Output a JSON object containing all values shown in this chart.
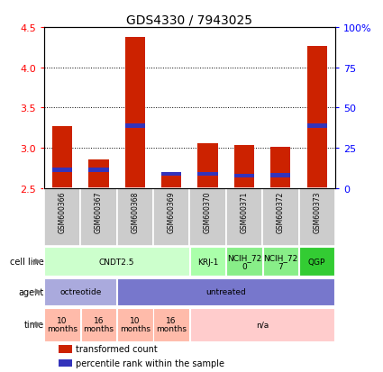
{
  "title": "GDS4330 / 7943025",
  "samples": [
    "GSM600366",
    "GSM600367",
    "GSM600368",
    "GSM600369",
    "GSM600370",
    "GSM600371",
    "GSM600372",
    "GSM600373"
  ],
  "bar_heights": [
    3.27,
    2.85,
    4.38,
    2.66,
    3.06,
    3.04,
    3.01,
    4.27
  ],
  "bar_base": 2.5,
  "blue_values": [
    2.7,
    2.7,
    3.25,
    2.655,
    2.655,
    2.635,
    2.635,
    3.25
  ],
  "blue_heights": [
    0.055,
    0.055,
    0.055,
    0.04,
    0.04,
    0.04,
    0.055,
    0.055
  ],
  "ylim": [
    2.5,
    4.5
  ],
  "y_ticks_left": [
    2.5,
    3.0,
    3.5,
    4.0,
    4.5
  ],
  "y_ticks_right_vals": [
    0,
    25,
    50,
    75,
    100
  ],
  "y_ticks_right_labels": [
    "0",
    "25",
    "50",
    "75",
    "100%"
  ],
  "bar_color": "#cc2200",
  "blue_color": "#3333bb",
  "sample_box_color": "#cccccc",
  "cell_line_row": {
    "label": "cell line",
    "groups": [
      {
        "text": "CNDT2.5",
        "span": [
          0,
          4
        ],
        "color": "#ccffcc"
      },
      {
        "text": "KRJ-1",
        "span": [
          4,
          5
        ],
        "color": "#aaffaa"
      },
      {
        "text": "NCIH_72\n0",
        "span": [
          5,
          6
        ],
        "color": "#88ee88"
      },
      {
        "text": "NCIH_72\n7",
        "span": [
          6,
          7
        ],
        "color": "#88ee88"
      },
      {
        "text": "QGP",
        "span": [
          7,
          8
        ],
        "color": "#33cc33"
      }
    ]
  },
  "agent_row": {
    "label": "agent",
    "groups": [
      {
        "text": "octreotide",
        "span": [
          0,
          2
        ],
        "color": "#aaaadd"
      },
      {
        "text": "untreated",
        "span": [
          2,
          8
        ],
        "color": "#7777cc"
      }
    ]
  },
  "time_row": {
    "label": "time",
    "groups": [
      {
        "text": "10\nmonths",
        "span": [
          0,
          1
        ],
        "color": "#ffbbaa"
      },
      {
        "text": "16\nmonths",
        "span": [
          1,
          2
        ],
        "color": "#ffbbaa"
      },
      {
        "text": "10\nmonths",
        "span": [
          2,
          3
        ],
        "color": "#ffbbaa"
      },
      {
        "text": "16\nmonths",
        "span": [
          3,
          4
        ],
        "color": "#ffbbaa"
      },
      {
        "text": "n/a",
        "span": [
          4,
          8
        ],
        "color": "#ffcccc"
      }
    ]
  },
  "legend": [
    {
      "label": "transformed count",
      "color": "#cc2200"
    },
    {
      "label": "percentile rank within the sample",
      "color": "#3333bb"
    }
  ]
}
